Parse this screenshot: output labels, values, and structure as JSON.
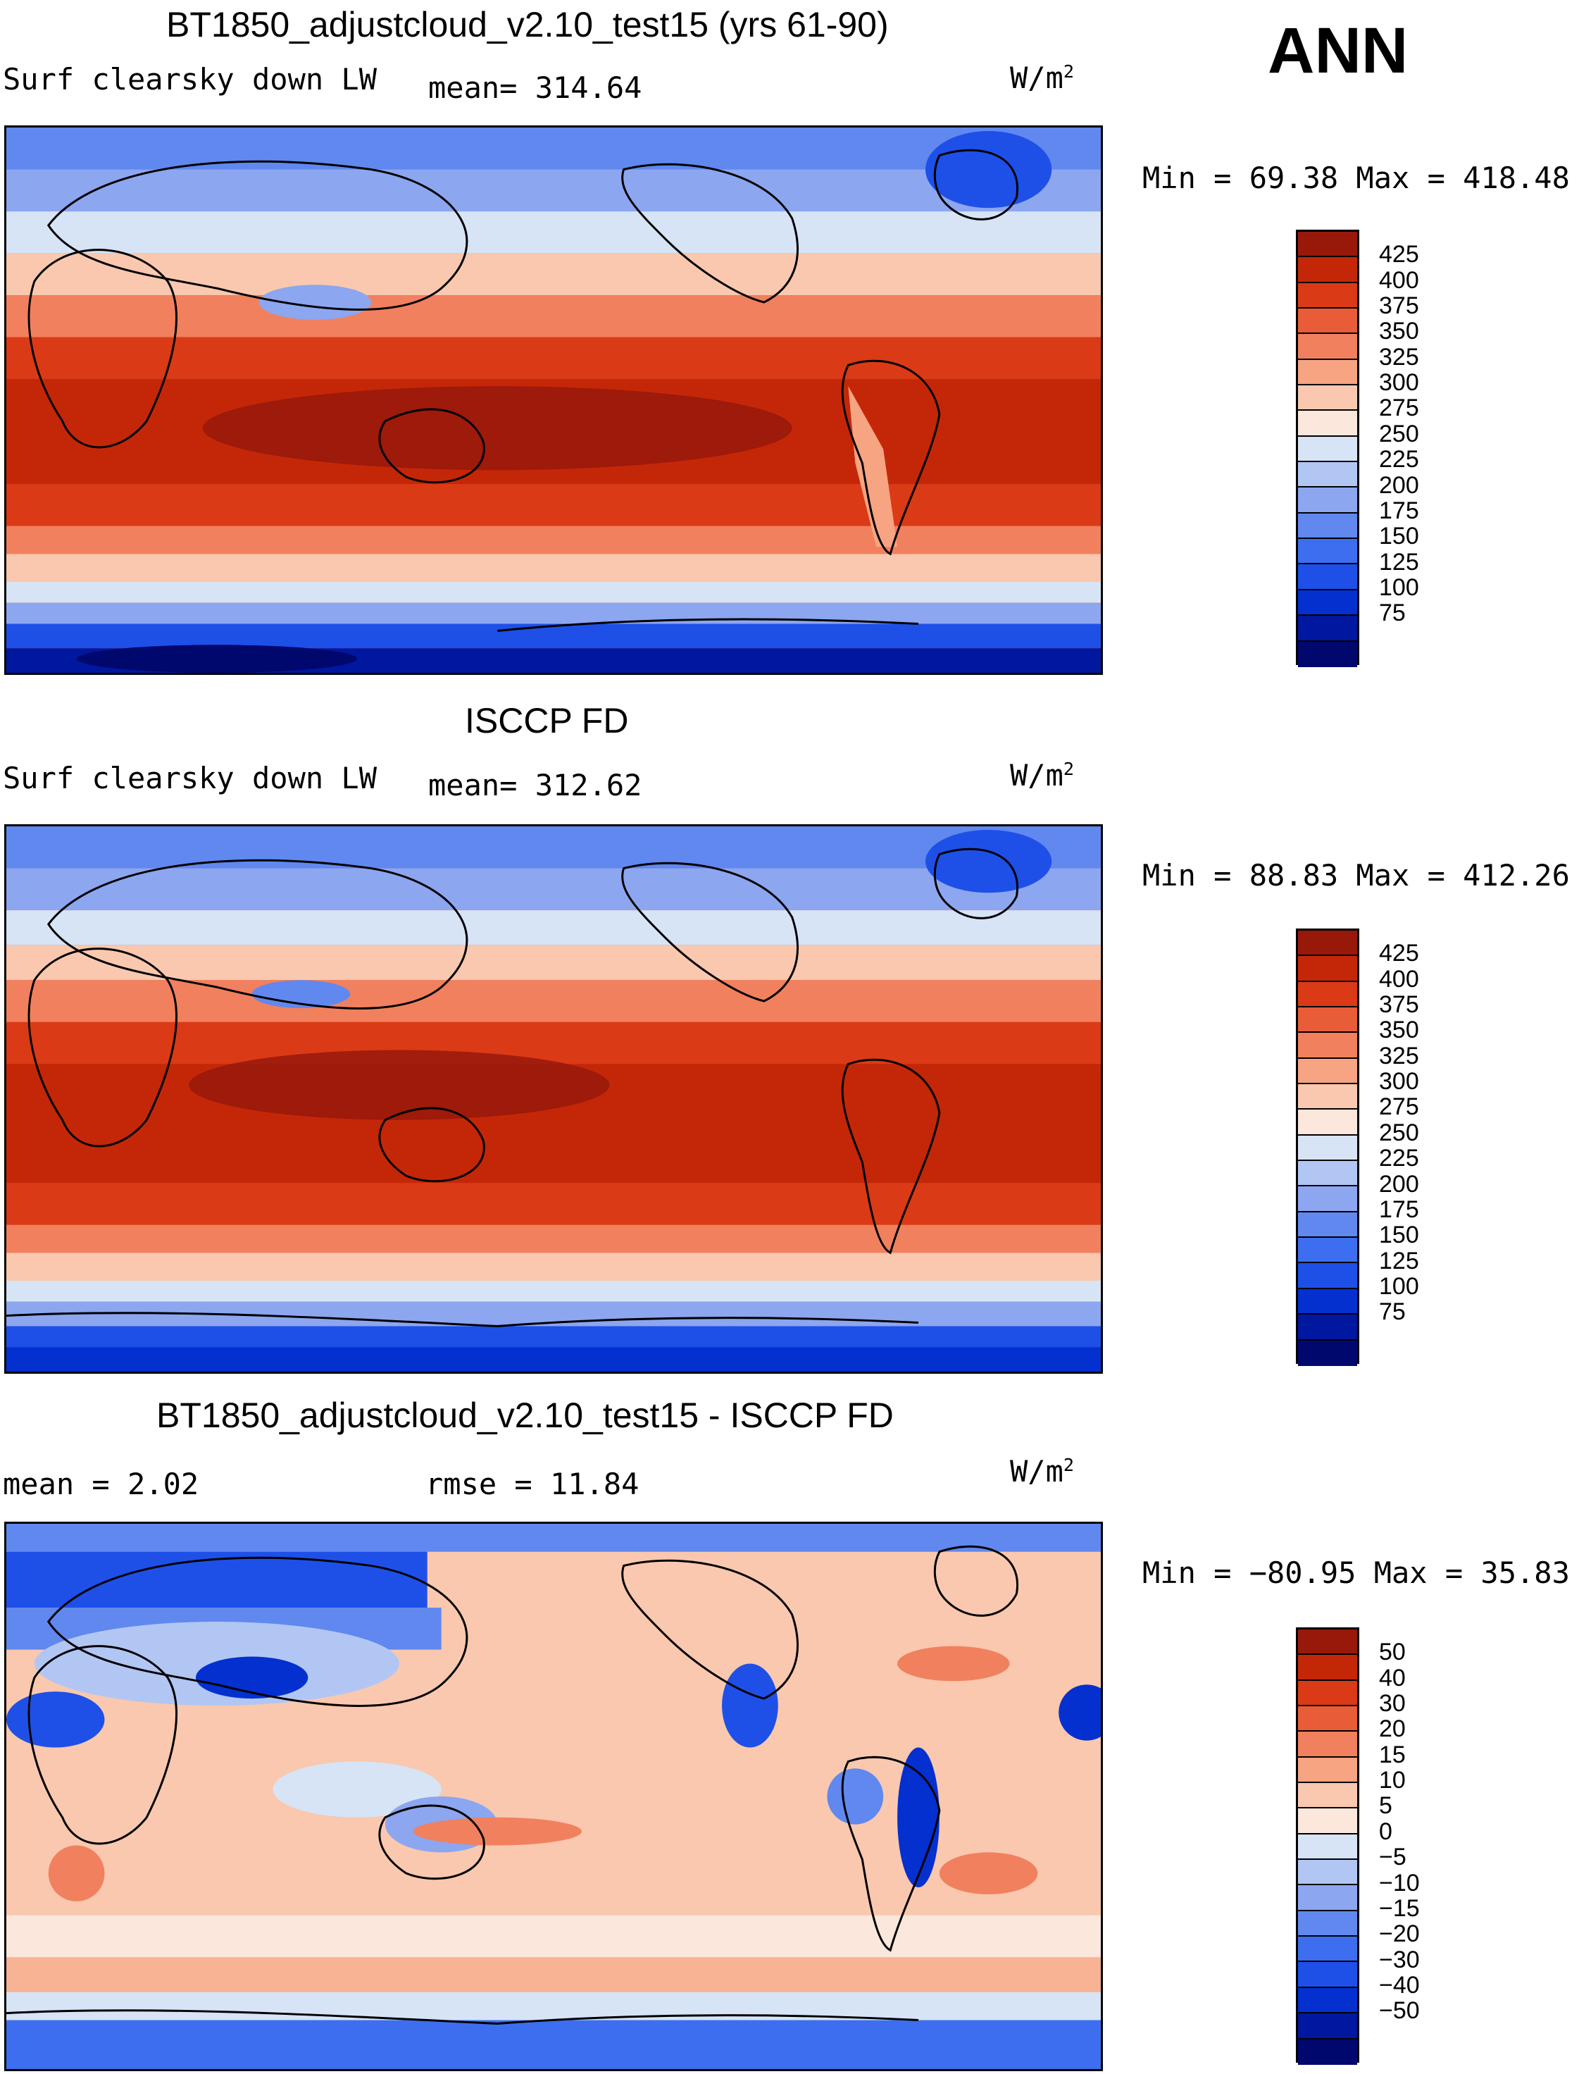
{
  "season": "ANN",
  "colors": {
    "abs_scale": [
      "#00086e",
      "#0018a0",
      "#0430d0",
      "#1e50e8",
      "#3c6eef",
      "#6088ef",
      "#8ca6f0",
      "#b2c6f4",
      "#d6e4f6",
      "#fbe7dc",
      "#f9c8ae",
      "#f6a482",
      "#f1805e",
      "#e95c38",
      "#db3a16",
      "#c42708",
      "#98190a"
    ],
    "diff_scale": [
      "#00086e",
      "#0018a0",
      "#0430d0",
      "#1e50e8",
      "#3c6eef",
      "#6088ef",
      "#8ca6f0",
      "#b2c6f4",
      "#d6e4f6",
      "#fbe7dc",
      "#f9c8ae",
      "#f6a482",
      "#f1805e",
      "#e95c38",
      "#db3a16",
      "#c42708",
      "#98190a"
    ]
  },
  "panels": [
    {
      "title": "BT1850_adjustcloud_v2.10_test15 (yrs 61-90)",
      "left_label": "Surf clearsky down LW",
      "stat_label": "mean= 314.64",
      "units_base": "W/m",
      "units_exp": "2",
      "minmax": "Min =   69.38 Max = 418.48",
      "colorbar_labels": [
        "425",
        "400",
        "375",
        "350",
        "325",
        "300",
        "275",
        "250",
        "225",
        "200",
        "175",
        "150",
        "125",
        "100",
        "75"
      ]
    },
    {
      "title": "ISCCP FD",
      "left_label": "Surf clearsky down LW",
      "stat_label": "mean= 312.62",
      "units_base": "W/m",
      "units_exp": "2",
      "minmax": "Min =   88.83 Max = 412.26",
      "colorbar_labels": [
        "425",
        "400",
        "375",
        "350",
        "325",
        "300",
        "275",
        "250",
        "225",
        "200",
        "175",
        "150",
        "125",
        "100",
        "75"
      ]
    },
    {
      "title": "BT1850_adjustcloud_v2.10_test15 - ISCCP FD",
      "left_label": "mean =    2.02",
      "stat_label": "rmse =   11.84",
      "units_base": "W/m",
      "units_exp": "2",
      "minmax": "Min = −80.95 Max =   35.83",
      "colorbar_labels": [
        "50",
        "40",
        "30",
        "20",
        "15",
        "10",
        "5",
        "0",
        "−5",
        "−10",
        "−15",
        "−20",
        "−30",
        "−40",
        "−50"
      ]
    }
  ]
}
